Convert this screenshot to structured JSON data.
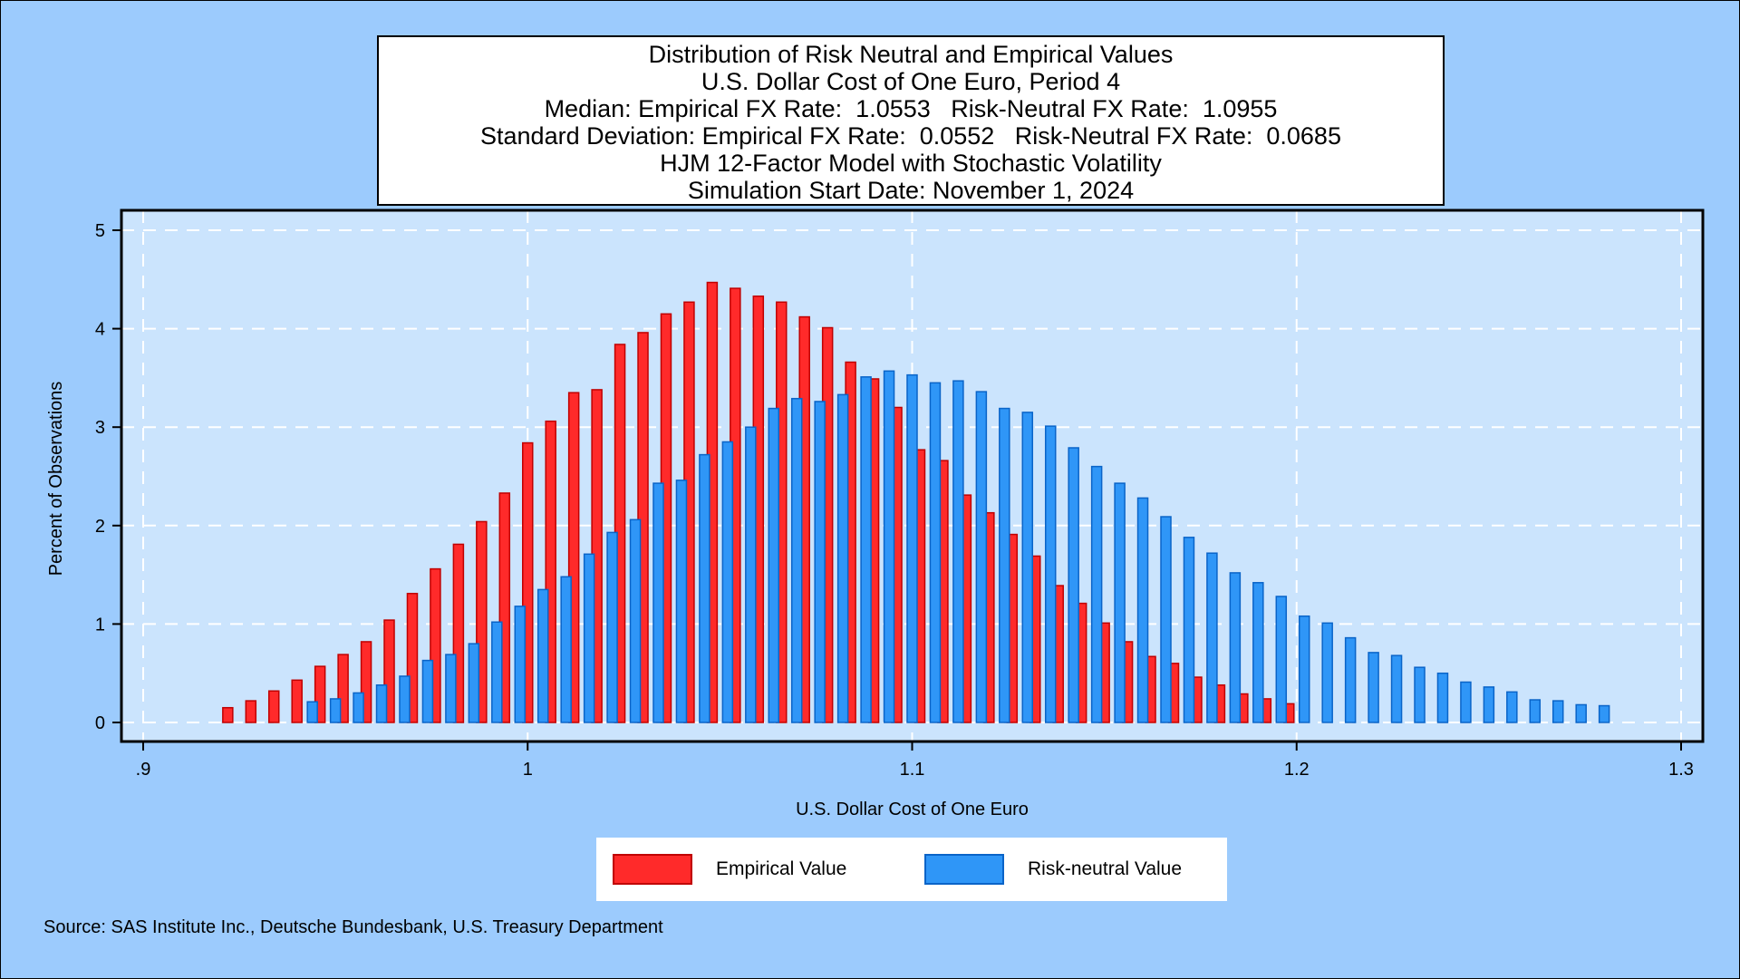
{
  "chart_data": {
    "type": "bar",
    "title_lines": [
      "Distribution of Risk Neutral and Empirical Values",
      "U.S. Dollar Cost of One Euro, Period 4",
      "Median: Empirical FX Rate:  1.0553   Risk-Neutral FX Rate:  1.0955",
      "Standard Deviation: Empirical FX Rate:  0.0552   Risk-Neutral FX Rate:  0.0685",
      "HJM 12-Factor Model with Stochastic Volatility",
      "Simulation Start Date: November 1, 2024"
    ],
    "xlabel": "U.S. Dollar Cost of One Euro",
    "ylabel": "Percent of Observations",
    "xlim": [
      0.9,
      1.3
    ],
    "ylim": [
      0,
      5
    ],
    "x_ticks": [
      0.9,
      1.0,
      1.1,
      1.2,
      1.3
    ],
    "x_tick_labels": [
      ".9",
      "1",
      "1.1",
      "1.2",
      "1.3"
    ],
    "y_ticks": [
      0,
      1,
      2,
      3,
      4,
      5
    ],
    "y_tick_labels": [
      "0",
      "1",
      "2",
      "3",
      "4",
      "5"
    ],
    "grid": true,
    "legend_position": "bottom",
    "series": [
      {
        "name": "Empirical Value",
        "color": "#ff2a2a",
        "edge_color": "#c00000",
        "x_start": 0.922,
        "x_step": 0.006,
        "values": [
          0.15,
          0.22,
          0.32,
          0.43,
          0.57,
          0.69,
          0.82,
          1.04,
          1.31,
          1.56,
          1.81,
          2.04,
          2.33,
          2.84,
          3.06,
          3.35,
          3.38,
          3.84,
          3.96,
          4.15,
          4.27,
          4.47,
          4.41,
          4.33,
          4.27,
          4.12,
          4.01,
          3.66,
          3.49,
          3.2,
          2.77,
          2.66,
          2.31,
          2.13,
          1.91,
          1.69,
          1.39,
          1.21,
          1.01,
          0.82,
          0.67,
          0.6,
          0.46,
          0.38,
          0.29,
          0.24,
          0.19
        ]
      },
      {
        "name": "Risk-neutral Value",
        "color": "#2f96f7",
        "edge_color": "#0a64c8",
        "x_start": 0.944,
        "x_step": 0.006,
        "values": [
          0.21,
          0.24,
          0.3,
          0.38,
          0.47,
          0.63,
          0.69,
          0.8,
          1.02,
          1.18,
          1.35,
          1.48,
          1.71,
          1.93,
          2.06,
          2.43,
          2.46,
          2.72,
          2.85,
          3.0,
          3.19,
          3.29,
          3.26,
          3.33,
          3.51,
          3.57,
          3.53,
          3.45,
          3.47,
          3.36,
          3.19,
          3.15,
          3.01,
          2.79,
          2.6,
          2.43,
          2.28,
          2.09,
          1.88,
          1.72,
          1.52,
          1.42,
          1.28,
          1.08,
          1.01,
          0.86,
          0.71,
          0.68,
          0.56,
          0.5,
          0.41,
          0.36,
          0.31,
          0.23,
          0.22,
          0.18,
          0.17
        ]
      }
    ]
  },
  "source_text": "Source: SAS Institute Inc., Deutsche Bundesbank, U.S. Treasury Department"
}
